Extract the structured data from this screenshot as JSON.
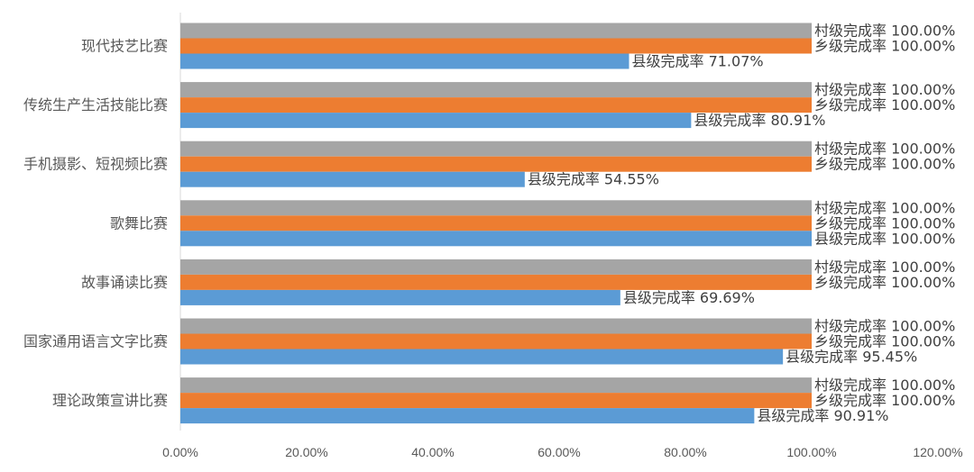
{
  "chart_data": {
    "type": "bar",
    "orientation": "horizontal",
    "categories": [
      "现代技艺比赛",
      "传统生产生活技能比赛",
      "手机摄影、短视频比赛",
      "歌舞比赛",
      "故事诵读比赛",
      "国家通用语言文字比赛",
      "理论政策宣讲比赛"
    ],
    "series": [
      {
        "name": "村级完成率",
        "color": "#a5a5a5",
        "values": [
          100,
          100,
          100,
          100,
          100,
          100,
          100
        ],
        "labels": [
          "村级完成率 100.00%",
          "村级完成率 100.00%",
          "村级完成率 100.00%",
          "村级完成率 100.00%",
          "村级完成率 100.00%",
          "村级完成率 100.00%",
          "村级完成率 100.00%"
        ]
      },
      {
        "name": "乡级完成率",
        "color": "#ed7d31",
        "values": [
          100,
          100,
          100,
          100,
          100,
          100,
          100
        ],
        "labels": [
          "乡级完成率 100.00%",
          "乡级完成率 100.00%",
          "乡级完成率 100.00%",
          "乡级完成率 100.00%",
          "乡级完成率 100.00%",
          "乡级完成率 100.00%",
          "乡级完成率 100.00%"
        ]
      },
      {
        "name": "县级完成率",
        "color": "#5b9bd5",
        "values": [
          71.07,
          80.91,
          54.55,
          100,
          69.69,
          95.45,
          90.91
        ],
        "labels": [
          "县级完成率 71.07%",
          "县级完成率 80.91%",
          "县级完成率 54.55%",
          "县级完成率 100.00%",
          "县级完成率 69.69%",
          "县级完成率 95.45%",
          "县级完成率 90.91%"
        ]
      }
    ],
    "xlim": [
      0,
      120
    ],
    "xticks": [
      "0.00%",
      "20.00%",
      "40.00%",
      "60.00%",
      "80.00%",
      "100.00%",
      "120.00%"
    ],
    "grid": false,
    "legend": "none"
  }
}
